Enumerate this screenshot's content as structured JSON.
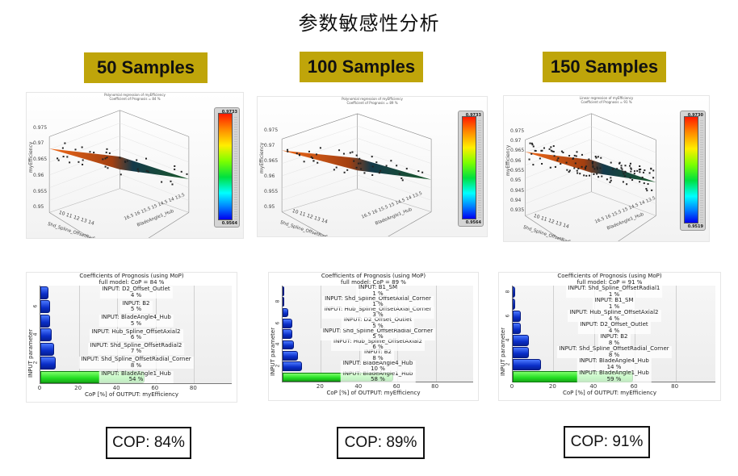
{
  "title": "参数敏感性分析",
  "panels": [
    {
      "sample_label": "50 Samples",
      "surface_plot": {
        "title_line1": "Polynomial regression of myEfficiency",
        "title_line2": "Coefficient of Prognosis =    84 %",
        "ylabel": "myEfficiency",
        "yticks": [
          "0.975",
          "0.97",
          "0.965",
          "0.96",
          "0.955",
          "0.95"
        ],
        "xaxis1_label": "Shd_Spline_OffsetRadial_Corner",
        "xaxis1_ticks": [
          "10",
          "11",
          "12",
          "13",
          "14"
        ],
        "xaxis2_label": "BladeAngle1_Hub",
        "xaxis2_ticks": [
          "16.5",
          "16",
          "15.5",
          "15",
          "14.5",
          "14",
          "13.5"
        ],
        "colorbar_max": "0.9733",
        "colorbar_min": "0.9564"
      },
      "cop_chart": {
        "title_line1": "Coefficients of Prognosis (using MoP)",
        "title_line2": "full model: CoP =    84 %",
        "ylabel": "INPUT parameter",
        "yticks": [
          "2",
          "4",
          "6"
        ],
        "xlabel": "CoP [%] of OUTPUT: myEfficiency",
        "xticks": [
          "0",
          "20",
          "40",
          "60",
          "80"
        ]
      },
      "cop_result": "COP: 84%"
    },
    {
      "sample_label": "100 Samples",
      "surface_plot": {
        "title_line1": "Polynomial regression of myEfficiency",
        "title_line2": "Coefficient of Prognosis =    89 %",
        "ylabel": "myEfficiency",
        "yticks": [
          "0.975",
          "0.97",
          "0.965",
          "0.96",
          "0.955",
          "0.95"
        ],
        "xaxis1_label": "Shd_Spline_OffsetRadial_Corner",
        "xaxis1_ticks": [
          "10",
          "11",
          "12",
          "13",
          "14"
        ],
        "xaxis2_label": "BladeAngle1_Hub",
        "xaxis2_ticks": [
          "16.5",
          "16",
          "15.5",
          "15",
          "14.5",
          "14",
          "13.5"
        ],
        "colorbar_max": "0.9733",
        "colorbar_min": "0.9564"
      },
      "cop_chart": {
        "title_line1": "Coefficients of Prognosis (using MoP)",
        "title_line2": "full model: CoP =    89 %",
        "ylabel": "INPUT parameter",
        "yticks": [
          "2",
          "4",
          "6",
          "8"
        ],
        "xlabel": "CoP [%] of OUTPUT: myEfficiency",
        "xticks": [
          "20",
          "40",
          "60",
          "80"
        ]
      },
      "cop_result": "COP: 89%"
    },
    {
      "sample_label": "150 Samples",
      "surface_plot": {
        "title_line1": "Linear regression of myEfficiency",
        "title_line2": "Coefficient of Prognosis =    91 %",
        "ylabel": "myEfficiency",
        "yticks": [
          "0.975",
          "0.97",
          "0.965",
          "0.96",
          "0.955",
          "0.95",
          "0.945",
          "0.94",
          "0.935"
        ],
        "xaxis1_label": "Shd_Spline_OffsetRadial_Corner",
        "xaxis1_ticks": [
          "10",
          "11",
          "12",
          "13",
          "14"
        ],
        "xaxis2_label": "BladeAngle1_Hub",
        "xaxis2_ticks": [
          "16.5",
          "16",
          "15.5",
          "15",
          "14.5",
          "14",
          "13.5"
        ],
        "colorbar_max": "0.9730",
        "colorbar_min": "0.9519"
      },
      "cop_chart": {
        "title_line1": "Coefficients of Prognosis (using MoP)",
        "title_line2": "full model: CoP =    91 %",
        "ylabel": "INPUT parameter",
        "yticks": [
          "2",
          "4",
          "6",
          "8"
        ],
        "xlabel": "CoP [%] of OUTPUT: myEfficiency",
        "xticks": [
          "0",
          "20",
          "40",
          "60",
          "80"
        ]
      },
      "cop_result": "COP: 91%"
    }
  ],
  "colors": {
    "sample_label_bg": "#bfa50a",
    "bar_blue": "#0a2ec8",
    "bar_green": "#22dd22"
  },
  "chart_data": [
    {
      "type": "bar",
      "orientation": "horizontal",
      "title": "Coefficients of Prognosis (using MoP) — full model: CoP = 84 % (50 Samples)",
      "xlabel": "CoP [%] of OUTPUT: myEfficiency",
      "ylabel": "INPUT parameter",
      "xlim": [
        0,
        100
      ],
      "categories": [
        "INPUT: BladeAngle1_Hub",
        "INPUT: Shd_Spline_OffsetRadial_Corner",
        "INPUT: Shd_Spline_OffsetRadial2",
        "INPUT: Hub_Spline_OffsetAxial2",
        "INPUT: BladeAngle4_Hub",
        "INPUT: B2",
        "INPUT: D2_Offset_Outlet"
      ],
      "values": [
        54,
        8,
        7,
        6,
        5,
        5,
        4
      ],
      "labels": [
        "54 %",
        "8 %",
        "7 %",
        "6 %",
        "5 %",
        "5 %",
        "4 %"
      ],
      "full_model_cop": 84
    },
    {
      "type": "bar",
      "orientation": "horizontal",
      "title": "Coefficients of Prognosis (using MoP) — full model: CoP = 89 % (100 Samples)",
      "xlabel": "CoP [%] of OUTPUT: myEfficiency",
      "ylabel": "INPUT parameter",
      "xlim": [
        0,
        100
      ],
      "categories": [
        "INPUT: BladeAngle1_Hub",
        "INPUT: BladeAngle4_Hub",
        "INPUT: B2",
        "INPUT: Hub_Spline_OffsetAxial2",
        "INPUT: Shd_Spline_OffsetRadial_Corner",
        "INPUT: D2_Offset_Outlet",
        "INPUT: Hub_Spline_OffsetAxial_Corner",
        "INPUT: Shd_Spline_OffsetAxial_Corner",
        "INPUT: B1_SM"
      ],
      "values": [
        58,
        10,
        8,
        6,
        5,
        5,
        3,
        1,
        1
      ],
      "labels": [
        "58 %",
        "10 %",
        "8 %",
        "6 %",
        "5 %",
        "5 %",
        "3 %",
        "1 %",
        "1 %"
      ],
      "full_model_cop": 89
    },
    {
      "type": "bar",
      "orientation": "horizontal",
      "title": "Coefficients of Prognosis (using MoP) — full model: CoP = 91 % (150 Samples)",
      "xlabel": "CoP [%] of OUTPUT: myEfficiency",
      "ylabel": "INPUT parameter",
      "xlim": [
        0,
        100
      ],
      "categories": [
        "INPUT: BladeAngle1_Hub",
        "INPUT: BladeAngle4_Hub",
        "INPUT: Shd_Spline_OffsetRadial_Corner",
        "INPUT: B2",
        "INPUT: D2_Offset_Outlet",
        "INPUT: Hub_Spline_OffsetAxial2",
        "INPUT: B1_SM",
        "INPUT: Shd_Spline_OffsetRadial1"
      ],
      "values": [
        59,
        14,
        8,
        8,
        4,
        4,
        1,
        1
      ],
      "labels": [
        "59 %",
        "14 %",
        "8 %",
        "8 %",
        "4 %",
        "4 %",
        "1 %",
        "1 %"
      ],
      "full_model_cop": 91
    },
    {
      "type": "scatter",
      "subtype": "3d-surface",
      "title": "Polynomial regression of myEfficiency, CoP = 84 %",
      "zlabel": "myEfficiency",
      "xlabel": "Shd_Spline_OffsetRadial_Corner",
      "ylabel": "BladeAngle1_Hub",
      "zlim": [
        0.95,
        0.975
      ],
      "colorbar_range": [
        0.9564,
        0.9733
      ]
    },
    {
      "type": "scatter",
      "subtype": "3d-surface",
      "title": "Polynomial regression of myEfficiency, CoP = 89 %",
      "zlabel": "myEfficiency",
      "xlabel": "Shd_Spline_OffsetRadial_Corner",
      "ylabel": "BladeAngle1_Hub",
      "zlim": [
        0.95,
        0.975
      ],
      "colorbar_range": [
        0.9564,
        0.9733
      ]
    },
    {
      "type": "scatter",
      "subtype": "3d-surface",
      "title": "Linear regression of myEfficiency, CoP = 91 %",
      "zlabel": "myEfficiency",
      "xlabel": "Shd_Spline_OffsetRadial_Corner",
      "ylabel": "BladeAngle1_Hub",
      "zlim": [
        0.935,
        0.975
      ],
      "colorbar_range": [
        0.9519,
        0.973
      ]
    }
  ]
}
